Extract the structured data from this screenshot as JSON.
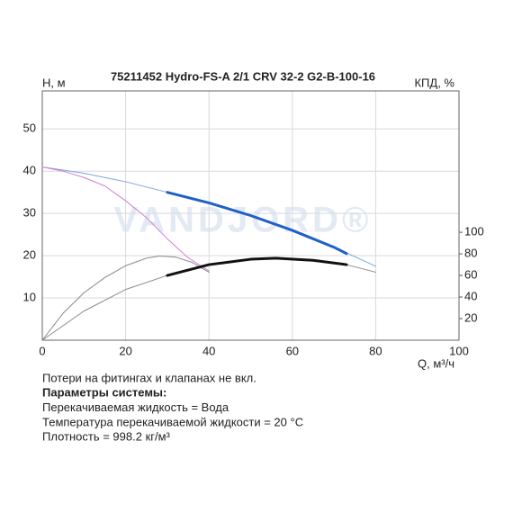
{
  "chart_data": {
    "type": "line",
    "title": "75211452 Hydro-FS-A 2/1 CRV 32-2 G2-B-100-16",
    "y_label": "H, м",
    "y2_label": "КПД, %",
    "x_label": "Q, м³/ч",
    "watermark": "VANDJORD®",
    "xlim": [
      0,
      100
    ],
    "xticks": [
      0,
      20,
      40,
      60,
      80,
      100
    ],
    "ylim": [
      0,
      59
    ],
    "yticks": [
      10,
      20,
      30,
      40,
      50
    ],
    "y2lim": [
      0,
      231
    ],
    "y2ticks": [
      20,
      40,
      60,
      80,
      100
    ],
    "grid": true,
    "series": [
      {
        "color": "#7aa7dd",
        "width": 1,
        "x": [
          0,
          10,
          20,
          30,
          40,
          50,
          60,
          70,
          80
        ],
        "values": [
          41,
          39.5,
          37.5,
          35,
          32.5,
          29.5,
          26,
          22,
          17.5
        ]
      },
      {
        "color": "#d67bd6",
        "width": 1,
        "x": [
          0,
          5,
          10,
          15,
          20,
          25,
          30,
          35,
          40
        ],
        "values": [
          41,
          40,
          38.5,
          36.5,
          33,
          29,
          24,
          19.5,
          16.4
        ]
      },
      {
        "color": "#1f5fc8",
        "width": 3,
        "x": [
          30,
          40,
          50,
          60,
          70,
          73
        ],
        "values": [
          35,
          32.5,
          29.5,
          26,
          22,
          20.5
        ]
      },
      {
        "color": "#8a8a8a",
        "width": 1,
        "axis": "y2",
        "x": [
          0,
          5,
          10,
          15,
          20,
          25,
          28,
          32,
          36,
          40
        ],
        "values": [
          0,
          25,
          44,
          58,
          69,
          76,
          78,
          77,
          72,
          63
        ]
      },
      {
        "color": "#8a8a8a",
        "width": 1,
        "axis": "y2",
        "x": [
          0,
          10,
          20,
          30,
          40,
          50,
          56,
          65,
          73,
          80
        ],
        "values": [
          0,
          27,
          47,
          60,
          70,
          75,
          76,
          74,
          70,
          63
        ]
      },
      {
        "color": "#111111",
        "width": 3,
        "axis": "y2",
        "x": [
          30,
          40,
          50,
          56,
          65,
          73
        ],
        "values": [
          60,
          70,
          75,
          76,
          74,
          70
        ]
      }
    ]
  },
  "notes": [
    {
      "text": "Потери на фитингах и клапанах не вкл.",
      "bold": false
    },
    {
      "text": "Параметры системы:",
      "bold": true
    },
    {
      "text": "Перекачиваемая жидкость = Вода",
      "bold": false
    },
    {
      "text": "Температура перекачиваемой жидкости = 20 °C",
      "bold": false
    },
    {
      "text": "Плотность = 998.2 кг/м³",
      "bold": false
    }
  ]
}
